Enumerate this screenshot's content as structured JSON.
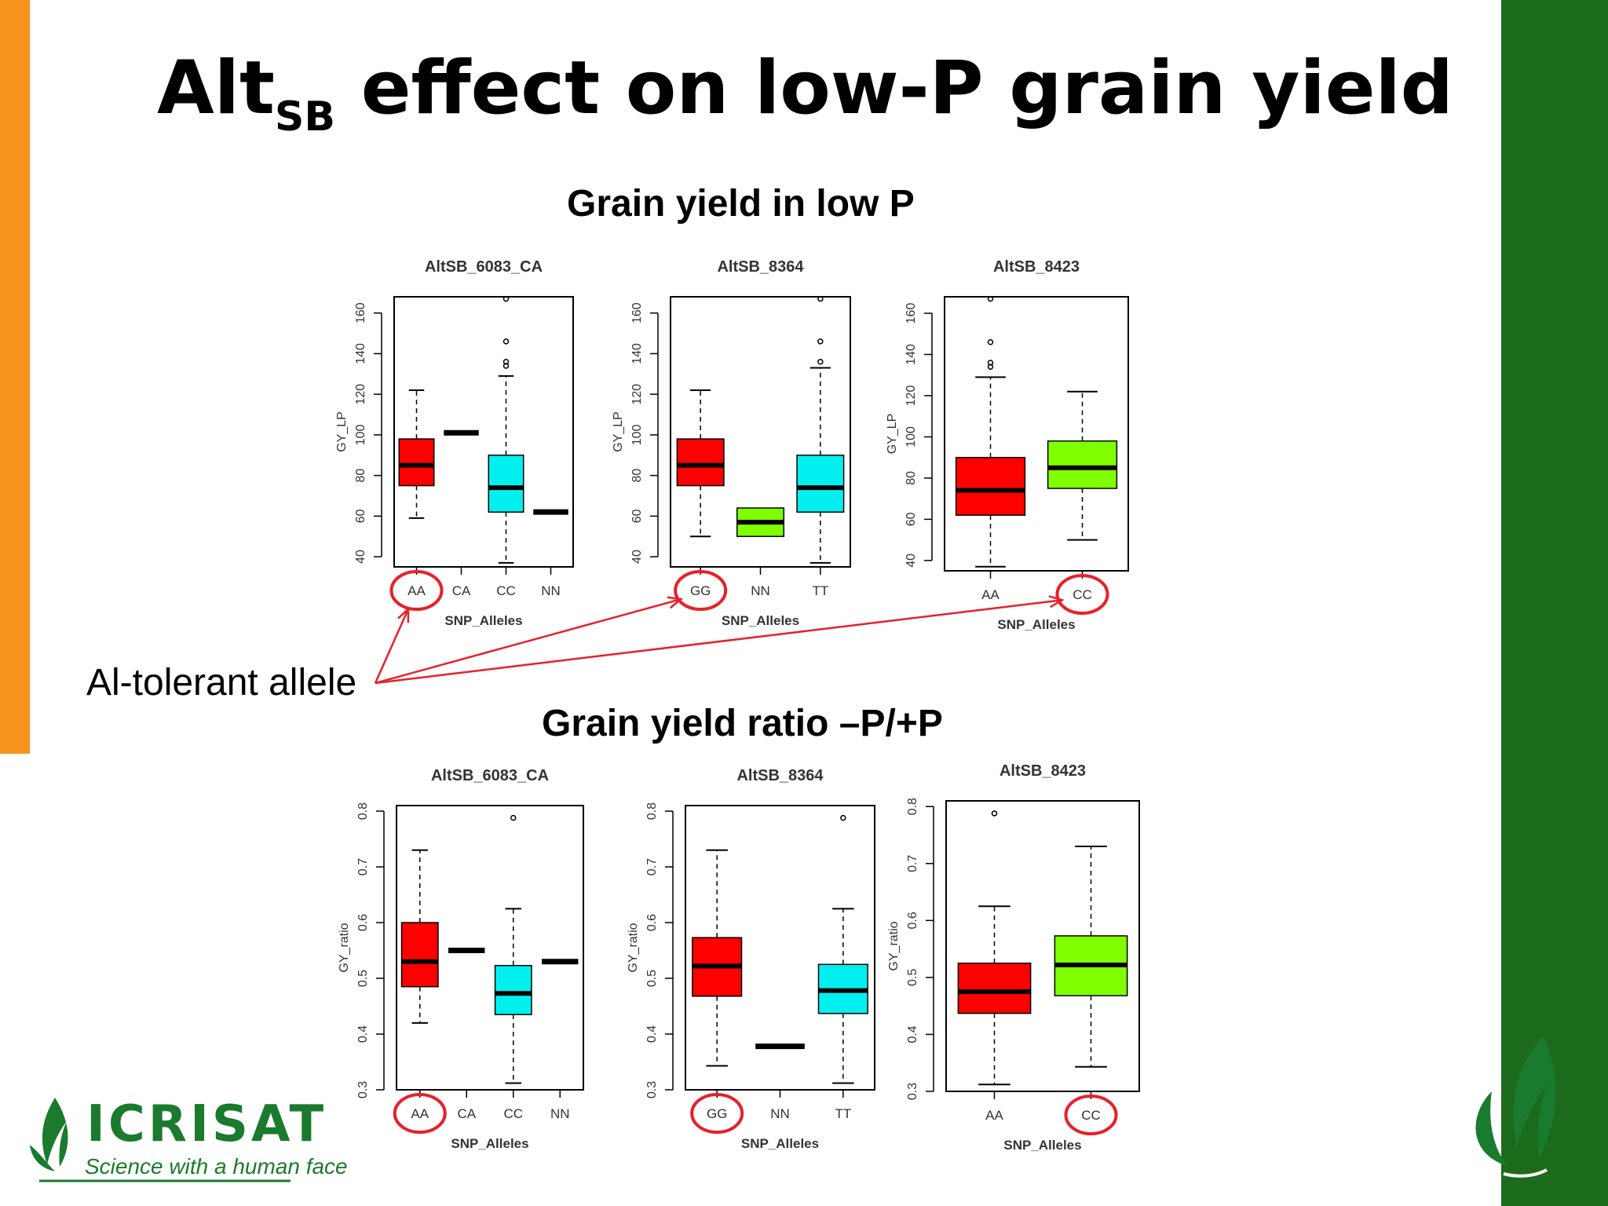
{
  "slide": {
    "title_main": "Alt",
    "title_sub": "SB",
    "title_rest": " effect on low-P grain yield",
    "section1_title": "Grain yield in low P",
    "section2_title": "Grain yield ratio –P/+P",
    "callout": "Al-tolerant allele",
    "logo_text": "ICRISAT",
    "logo_tagline": "Science with a human face"
  },
  "colors": {
    "orange": "#f7941d",
    "green_bar": "#1c6b1c",
    "red": "#ff0000",
    "cyan": "#00f0f0",
    "lime": "#80ff00",
    "highlight": "#e8202a"
  },
  "chart_data": [
    {
      "type": "boxplot",
      "title": "AltSB_6083_CA",
      "xlabel": "SNP_Alleles",
      "ylabel": "GY_LP",
      "ylim": [
        35,
        168
      ],
      "yticks": [
        40,
        60,
        80,
        100,
        120,
        140,
        160
      ],
      "highlight": "AA",
      "groups": [
        {
          "name": "AA",
          "color": "red",
          "min": 59,
          "q1": 75,
          "median": 85,
          "q3": 98,
          "max": 122,
          "outliers": []
        },
        {
          "name": "CA",
          "color": "red",
          "median": 101
        },
        {
          "name": "CC",
          "color": "cyan",
          "min": 37,
          "q1": 62,
          "median": 74,
          "q3": 90,
          "max": 129,
          "outliers": [
            134,
            136,
            146,
            167
          ]
        },
        {
          "name": "NN",
          "color": "red",
          "median": 62
        }
      ]
    },
    {
      "type": "boxplot",
      "title": "AltSB_8364",
      "xlabel": "SNP_Alleles",
      "ylabel": "GY_LP",
      "ylim": [
        35,
        168
      ],
      "yticks": [
        40,
        60,
        80,
        100,
        120,
        140,
        160
      ],
      "highlight": "GG",
      "groups": [
        {
          "name": "GG",
          "color": "red",
          "min": 50,
          "q1": 75,
          "median": 85,
          "q3": 98,
          "max": 122,
          "outliers": []
        },
        {
          "name": "NN",
          "color": "lime",
          "q1": 50,
          "median": 57,
          "q3": 64
        },
        {
          "name": "TT",
          "color": "cyan",
          "min": 37,
          "q1": 62,
          "median": 74,
          "q3": 90,
          "max": 133,
          "outliers": [
            136,
            146,
            167
          ]
        }
      ]
    },
    {
      "type": "boxplot",
      "title": "AltSB_8423",
      "xlabel": "SNP_Alleles",
      "ylabel": "GY_LP",
      "ylim": [
        35,
        168
      ],
      "yticks": [
        40,
        60,
        80,
        100,
        120,
        140,
        160
      ],
      "highlight": "CC",
      "groups": [
        {
          "name": "AA",
          "color": "red",
          "min": 37,
          "q1": 62,
          "median": 74,
          "q3": 90,
          "max": 129,
          "outliers": [
            134,
            136,
            146,
            167
          ]
        },
        {
          "name": "CC",
          "color": "lime",
          "min": 50,
          "q1": 75,
          "median": 85,
          "q3": 98,
          "max": 122,
          "outliers": []
        }
      ]
    },
    {
      "type": "boxplot",
      "title": "AltSB_6083_CA",
      "xlabel": "SNP_Alleles",
      "ylabel": "GY_ratio",
      "ylim": [
        0.3,
        0.81
      ],
      "yticks": [
        0.3,
        0.4,
        0.5,
        0.6,
        0.7,
        0.8
      ],
      "highlight": "AA",
      "groups": [
        {
          "name": "AA",
          "color": "red",
          "min": 0.42,
          "q1": 0.485,
          "median": 0.53,
          "q3": 0.6,
          "max": 0.73,
          "outliers": []
        },
        {
          "name": "CA",
          "color": "red",
          "median": 0.55
        },
        {
          "name": "CC",
          "color": "cyan",
          "min": 0.312,
          "q1": 0.435,
          "median": 0.473,
          "q3": 0.523,
          "max": 0.625,
          "outliers": [
            0.788
          ]
        },
        {
          "name": "NN",
          "color": "red",
          "median": 0.53
        }
      ]
    },
    {
      "type": "boxplot",
      "title": "AltSB_8364",
      "xlabel": "SNP_Alleles",
      "ylabel": "GY_ratio",
      "ylim": [
        0.3,
        0.81
      ],
      "yticks": [
        0.3,
        0.4,
        0.5,
        0.6,
        0.7,
        0.8
      ],
      "highlight": "GG",
      "groups": [
        {
          "name": "GG",
          "color": "red",
          "min": 0.343,
          "q1": 0.468,
          "median": 0.522,
          "q3": 0.573,
          "max": 0.73,
          "outliers": []
        },
        {
          "name": "NN",
          "color": "red",
          "median": 0.378
        },
        {
          "name": "TT",
          "color": "cyan",
          "min": 0.312,
          "q1": 0.437,
          "median": 0.478,
          "q3": 0.525,
          "max": 0.625,
          "outliers": [
            0.788
          ]
        }
      ]
    },
    {
      "type": "boxplot",
      "title": "AltSB_8423",
      "xlabel": "SNP_Alleles",
      "ylabel": "GY_ratio",
      "ylim": [
        0.3,
        0.81
      ],
      "yticks": [
        0.3,
        0.4,
        0.5,
        0.6,
        0.7,
        0.8
      ],
      "highlight": "CC",
      "groups": [
        {
          "name": "AA",
          "color": "red",
          "min": 0.312,
          "q1": 0.437,
          "median": 0.475,
          "q3": 0.525,
          "max": 0.625,
          "outliers": [
            0.788
          ]
        },
        {
          "name": "CC",
          "color": "lime",
          "min": 0.343,
          "q1": 0.468,
          "median": 0.522,
          "q3": 0.573,
          "max": 0.73,
          "outliers": []
        }
      ]
    }
  ]
}
